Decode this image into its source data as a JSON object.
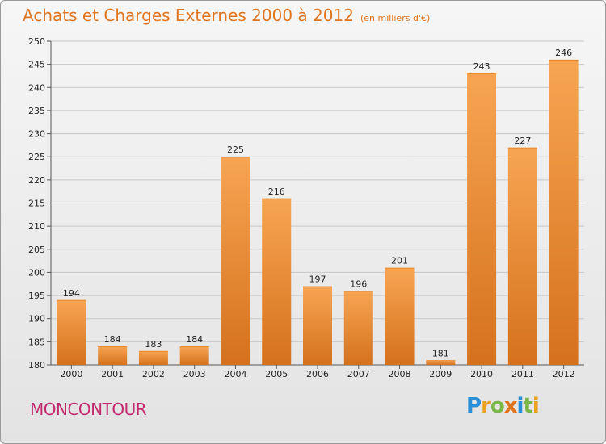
{
  "header": {
    "title": "Achats et Charges Externes 2000 à 2012",
    "subtitle": "(en milliers d'€)"
  },
  "commune": "MONCONTOUR",
  "logo": {
    "text": "Proxiti",
    "letters": [
      {
        "ch": "P",
        "color": "#2a8fd6"
      },
      {
        "ch": "r",
        "color": "#e8a21d"
      },
      {
        "ch": "o",
        "color": "#7ab648"
      },
      {
        "ch": "x",
        "color": "#e0751d"
      },
      {
        "ch": "i",
        "color": "#2a8fd6"
      },
      {
        "ch": "t",
        "color": "#7ab648"
      },
      {
        "ch": "i",
        "color": "#e8a21d"
      }
    ]
  },
  "colors": {
    "bar_light": "#f7a553",
    "bar_dark": "#d5711c",
    "grid": "#c7c7c7",
    "axis_text": "#222222"
  },
  "chart_data": {
    "type": "bar",
    "title": "Achats et Charges Externes 2000 à 2012",
    "subtitle": "(en milliers d'€)",
    "xlabel": "",
    "ylabel": "",
    "categories": [
      "2000",
      "2001",
      "2002",
      "2003",
      "2004",
      "2005",
      "2006",
      "2007",
      "2008",
      "2009",
      "2010",
      "2011",
      "2012"
    ],
    "values": [
      194,
      184,
      183,
      184,
      225,
      216,
      197,
      196,
      201,
      181,
      243,
      227,
      246
    ],
    "ylim": [
      180,
      250
    ],
    "yticks": [
      180,
      185,
      190,
      195,
      200,
      205,
      210,
      215,
      220,
      225,
      230,
      235,
      240,
      245,
      250
    ],
    "grid": true
  }
}
